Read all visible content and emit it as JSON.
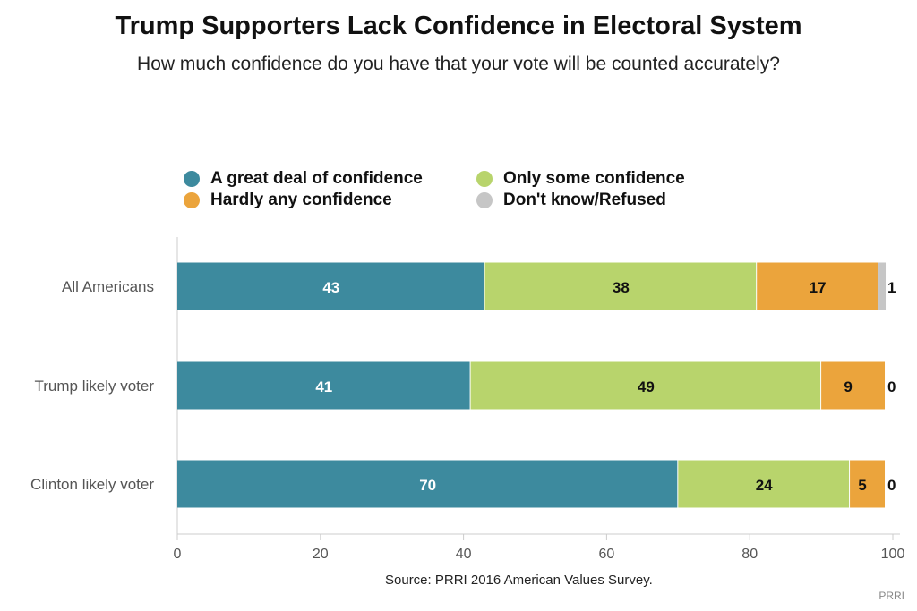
{
  "header": {
    "title": "Trump Supporters Lack Confidence in Electoral System",
    "subtitle": "How much confidence do you have that your vote will be counted accurately?"
  },
  "footer": {
    "source": "Source: PRRI 2016 American Values Survey.",
    "brand": "PRRI"
  },
  "chart_data": {
    "type": "bar",
    "orientation": "horizontal",
    "stacked": true,
    "categories": [
      "All Americans",
      "Trump likely voter",
      "Clinton likely voter"
    ],
    "series": [
      {
        "name": "A great deal of confidence",
        "color": "#3d8a9e",
        "values": [
          43,
          41,
          70
        ],
        "label_color": "#ffffff"
      },
      {
        "name": "Only some confidence",
        "color": "#b8d46c",
        "values": [
          38,
          49,
          24
        ],
        "label_color": "#111111"
      },
      {
        "name": "Hardly any confidence",
        "color": "#eba43c",
        "values": [
          17,
          9,
          5
        ],
        "label_color": "#111111"
      },
      {
        "name": "Don't know/Refused",
        "color": "#c6c6c6",
        "values": [
          1,
          0,
          0
        ],
        "label_color": "#111111"
      }
    ],
    "xlim": [
      0,
      100
    ],
    "xticks": [
      0,
      20,
      40,
      60,
      80,
      100
    ],
    "grid": false,
    "legend_position": "top"
  }
}
